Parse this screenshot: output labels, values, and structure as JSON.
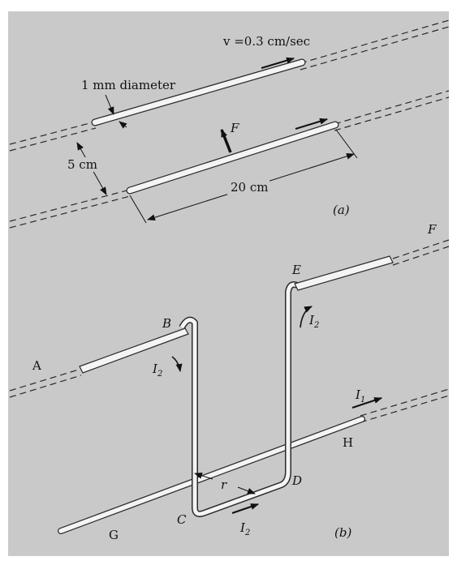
{
  "part_a": {
    "velocity_label": "v =0.3 cm/sec",
    "diameter_label": "1 mm diameter",
    "force_label": "F",
    "separation_label": "5 cm",
    "length_label": "20 cm",
    "panel_label": "(a)"
  },
  "part_b": {
    "point_labels": {
      "A": "A",
      "B": "B",
      "C": "C",
      "D": "D",
      "E": "E",
      "F": "F",
      "G": "G",
      "H": "H"
    },
    "current_symbol": "I",
    "current_2_sub": "2",
    "current_1_sub": "1",
    "distance_label": "r",
    "panel_label": "(b)"
  },
  "colors": {
    "background": "#c9c9c9",
    "wire_fill": "#f4f4f4",
    "wire_edge": "#2a2a2a",
    "ink": "#111111"
  }
}
